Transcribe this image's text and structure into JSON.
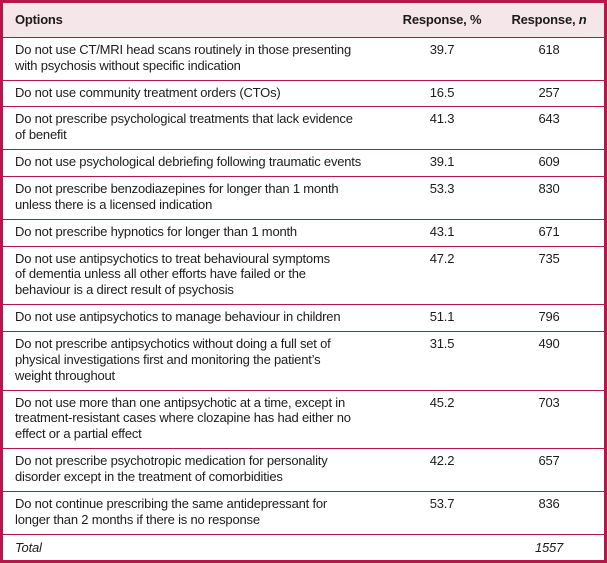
{
  "table": {
    "accent_color": "#b5174a",
    "header_bg_color": "#f5e7e9",
    "header": {
      "options_label": "Options",
      "response_pct_label": "Response, %",
      "response_n_prefix": "Response, ",
      "response_n_italic": "n"
    },
    "rows": [
      {
        "option": "Do not use CT/MRI head scans routinely in those presenting\nwith psychosis without specific indication",
        "pct": "39.7",
        "n": "618"
      },
      {
        "option": "Do not use community treatment orders (CTOs)",
        "pct": "16.5",
        "n": "257"
      },
      {
        "option": "Do not prescribe psychological treatments that lack evidence\nof benefit",
        "pct": "41.3",
        "n": "643"
      },
      {
        "option": "Do not use psychological debriefing following traumatic events",
        "pct": "39.1",
        "n": "609"
      },
      {
        "option": "Do not prescribe benzodiazepines for longer than 1 month\nunless there is a licensed indication",
        "pct": "53.3",
        "n": "830"
      },
      {
        "option": "Do not prescribe hypnotics for longer than 1 month",
        "pct": "43.1",
        "n": "671"
      },
      {
        "option": "Do not use antipsychotics to treat behavioural symptoms\nof dementia unless all other efforts have failed or the\nbehaviour is a direct result of psychosis",
        "pct": "47.2",
        "n": "735"
      },
      {
        "option": "Do not use antipsychotics to manage behaviour in children",
        "pct": "51.1",
        "n": "796"
      },
      {
        "option": "Do not prescribe antipsychotics without doing a full set of\nphysical investigations first and monitoring the patient’s\nweight throughout",
        "pct": "31.5",
        "n": "490"
      },
      {
        "option": "Do not use more than one antipsychotic at a time, except in\ntreatment-resistant cases where clozapine has had either no\neffect or a partial effect",
        "pct": "45.2",
        "n": "703"
      },
      {
        "option": "Do not prescribe psychotropic medication for personality\ndisorder except in the treatment of comorbidities",
        "pct": "42.2",
        "n": "657"
      },
      {
        "option": "Do not continue prescribing the same antidepressant for\nlonger than 2 months if there is no response",
        "pct": "53.7",
        "n": "836"
      }
    ],
    "total": {
      "label": "Total",
      "pct": "",
      "n": "1557"
    }
  }
}
